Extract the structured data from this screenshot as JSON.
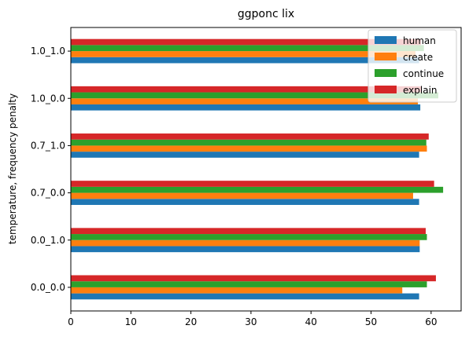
{
  "chart_data": {
    "type": "bar",
    "orientation": "horizontal",
    "title": "ggponc lix",
    "xlabel": "",
    "ylabel": "temperature, frequency penalty",
    "categories": [
      "0.0_0.0",
      "0.0_1.0",
      "0.7_0.0",
      "0.7_1.0",
      "1.0_0.0",
      "1.0_1.0"
    ],
    "series": [
      {
        "name": "human",
        "color": "#1f77b4",
        "values": [
          58.0,
          58.1,
          58.0,
          58.0,
          58.2,
          58.0
        ]
      },
      {
        "name": "create",
        "color": "#ff7f0e",
        "values": [
          55.2,
          58.1,
          57.0,
          59.3,
          57.8,
          57.4
        ]
      },
      {
        "name": "continue",
        "color": "#2ca02c",
        "values": [
          59.3,
          59.3,
          62.0,
          59.2,
          61.2,
          58.8
        ]
      },
      {
        "name": "explain",
        "color": "#d62728",
        "values": [
          60.8,
          59.1,
          60.5,
          59.6,
          58.4,
          58.3
        ]
      }
    ],
    "xlim": [
      0,
      65
    ],
    "xticks": [
      0,
      10,
      20,
      30,
      40,
      50,
      60
    ],
    "grid": false,
    "legend_position": "top-right"
  }
}
